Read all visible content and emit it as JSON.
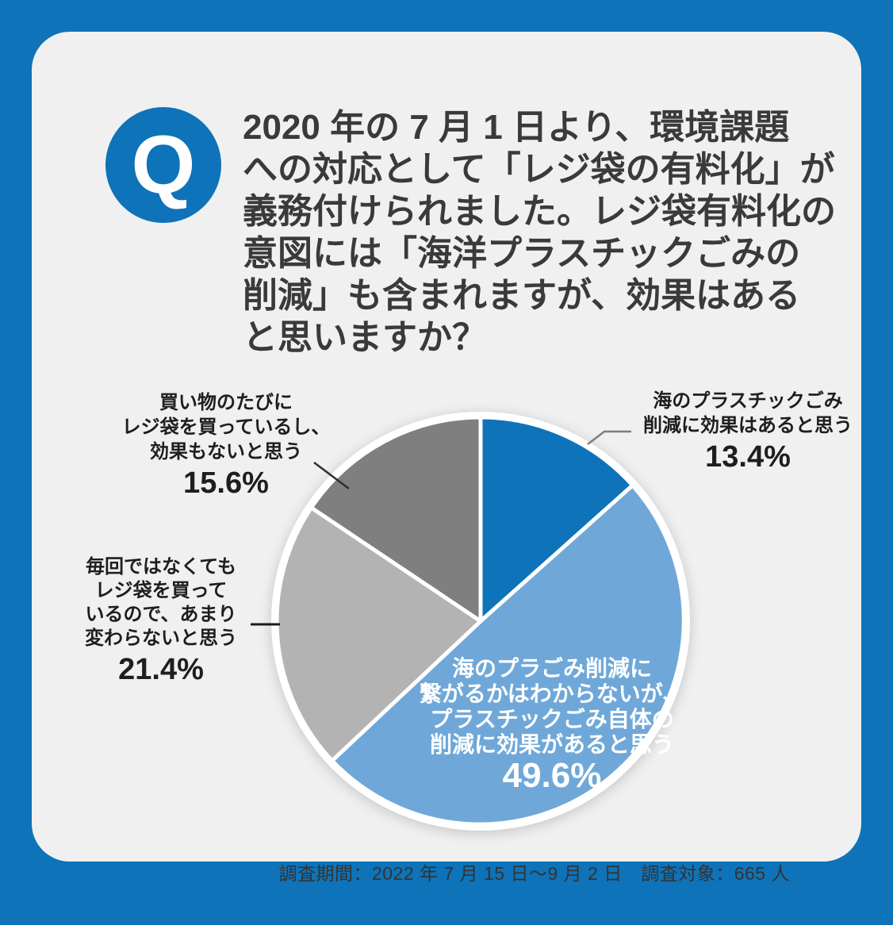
{
  "page": {
    "frame_color": "#0e73b8",
    "card_color": "#f0f0f1"
  },
  "question": {
    "badge_label": "Q",
    "text": "2020 年の 7 月 1 日より、環境課題\nへの対応として「レジ袋の有料化」が\n義務付けられました。レジ袋有料化の\n意図には「海洋プラスチックごみの\n削減」も含まれますが、効果はある\nと思いますか？"
  },
  "chart_data": {
    "type": "pie",
    "start_angle_deg": -90,
    "direction": "clockwise",
    "unit": "%",
    "separator_color": "#ffffff",
    "slices": [
      {
        "label": "海のプラスチックごみ削減に効果はあると思う",
        "value": 13.4,
        "color": "#0e73b8"
      },
      {
        "label": "海のプラごみ削減に繋がるかはわからないが、プラスチックごみ自体の削減に効果があると思う",
        "value": 49.6,
        "color": "#6fa8d8"
      },
      {
        "label": "毎回ではなくてもレジ袋を買っているので、あまり変わらないと思う",
        "value": 21.4,
        "color": "#b3b3b4"
      },
      {
        "label": "買い物のたびにレジ袋を買っているし、効果もないと思う",
        "value": 15.6,
        "color": "#7f7f80"
      }
    ]
  },
  "callouts": {
    "right": {
      "text": "海のプラスチックごみ\n削減に効果はあると思う",
      "pct": "13.4%"
    },
    "top_left": {
      "text": "買い物のたびに\nレジ袋を買っているし、\n効果もないと思う",
      "pct": "15.6%"
    },
    "left": {
      "text": "毎回ではなくても\nレジ袋を買って\nいるので、あまり\n変わらないと思う",
      "pct": "21.4%"
    },
    "inside": {
      "text": "海のプラごみ削減に\n繋がるかはわからないが、\nプラスチックごみ自体の\n削減に効果があると思う",
      "pct": "49.6%"
    }
  },
  "footer": {
    "text": "調査期間：2022 年 7 月 15 日〜9 月 2 日　調査対象：665 人"
  }
}
